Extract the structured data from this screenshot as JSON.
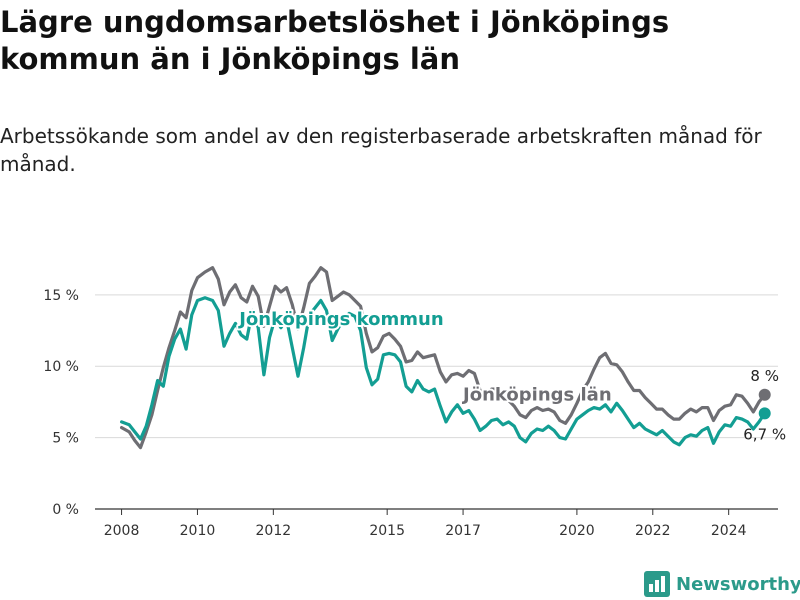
{
  "title": "Lägre ungdomsarbetslöshet i Jönköpings kommun än i Jönköpings län",
  "subtitle": "Arbetssökande som andel av den registerbaserade arbetskraften månad för månad.",
  "brand": {
    "name": "Newsworthy"
  },
  "colors": {
    "kommun": "#139e93",
    "lan": "#6e6e73",
    "grid": "#d9d9d9",
    "axis": "#333333"
  },
  "chart_data": {
    "type": "line",
    "xlim": [
      2007.3,
      2025.3
    ],
    "ylim": [
      0,
      18
    ],
    "x_ticks": [
      2008,
      2010,
      2012,
      2015,
      2017,
      2020,
      2022,
      2024
    ],
    "y_ticks": [
      {
        "value": 0,
        "label": "0 %"
      },
      {
        "value": 5,
        "label": "5 %"
      },
      {
        "value": 10,
        "label": "10 %"
      },
      {
        "value": 15,
        "label": "15 %"
      }
    ],
    "grid": true,
    "series": [
      {
        "name": "Jönköpings kommun",
        "color": "#139e93",
        "end_label": "6,7 %",
        "points": [
          [
            2008.0,
            6.1
          ],
          [
            2008.2,
            5.9
          ],
          [
            2008.35,
            5.4
          ],
          [
            2008.5,
            4.9
          ],
          [
            2008.65,
            5.8
          ],
          [
            2008.8,
            7.3
          ],
          [
            2008.95,
            9.0
          ],
          [
            2009.1,
            8.6
          ],
          [
            2009.25,
            10.7
          ],
          [
            2009.4,
            11.9
          ],
          [
            2009.55,
            12.6
          ],
          [
            2009.7,
            11.2
          ],
          [
            2009.85,
            13.6
          ],
          [
            2010.0,
            14.6
          ],
          [
            2010.2,
            14.8
          ],
          [
            2010.4,
            14.6
          ],
          [
            2010.55,
            13.9
          ],
          [
            2010.7,
            11.4
          ],
          [
            2010.85,
            12.3
          ],
          [
            2011.0,
            13.0
          ],
          [
            2011.15,
            12.2
          ],
          [
            2011.3,
            11.9
          ],
          [
            2011.45,
            13.9
          ],
          [
            2011.6,
            12.7
          ],
          [
            2011.75,
            9.4
          ],
          [
            2011.9,
            12.0
          ],
          [
            2012.05,
            13.4
          ],
          [
            2012.2,
            12.7
          ],
          [
            2012.35,
            13.3
          ],
          [
            2012.5,
            11.3
          ],
          [
            2012.65,
            9.3
          ],
          [
            2012.8,
            11.3
          ],
          [
            2012.95,
            13.6
          ],
          [
            2013.1,
            14.1
          ],
          [
            2013.25,
            14.6
          ],
          [
            2013.4,
            13.9
          ],
          [
            2013.55,
            11.8
          ],
          [
            2013.7,
            12.6
          ],
          [
            2013.85,
            13.3
          ],
          [
            2014.0,
            13.7
          ],
          [
            2014.15,
            13.5
          ],
          [
            2014.3,
            12.5
          ],
          [
            2014.45,
            9.9
          ],
          [
            2014.6,
            8.7
          ],
          [
            2014.75,
            9.1
          ],
          [
            2014.9,
            10.8
          ],
          [
            2015.05,
            10.9
          ],
          [
            2015.2,
            10.8
          ],
          [
            2015.35,
            10.3
          ],
          [
            2015.5,
            8.6
          ],
          [
            2015.65,
            8.2
          ],
          [
            2015.8,
            9.0
          ],
          [
            2015.95,
            8.4
          ],
          [
            2016.1,
            8.2
          ],
          [
            2016.25,
            8.4
          ],
          [
            2016.4,
            7.2
          ],
          [
            2016.55,
            6.1
          ],
          [
            2016.7,
            6.8
          ],
          [
            2016.85,
            7.3
          ],
          [
            2017.0,
            6.7
          ],
          [
            2017.15,
            6.9
          ],
          [
            2017.3,
            6.3
          ],
          [
            2017.45,
            5.5
          ],
          [
            2017.6,
            5.8
          ],
          [
            2017.75,
            6.2
          ],
          [
            2017.9,
            6.3
          ],
          [
            2018.05,
            5.9
          ],
          [
            2018.2,
            6.1
          ],
          [
            2018.35,
            5.8
          ],
          [
            2018.5,
            5.0
          ],
          [
            2018.65,
            4.7
          ],
          [
            2018.8,
            5.3
          ],
          [
            2018.95,
            5.6
          ],
          [
            2019.1,
            5.5
          ],
          [
            2019.25,
            5.8
          ],
          [
            2019.4,
            5.5
          ],
          [
            2019.55,
            5.0
          ],
          [
            2019.7,
            4.9
          ],
          [
            2019.85,
            5.6
          ],
          [
            2020.0,
            6.3
          ],
          [
            2020.15,
            6.6
          ],
          [
            2020.3,
            6.9
          ],
          [
            2020.45,
            7.1
          ],
          [
            2020.6,
            7.0
          ],
          [
            2020.75,
            7.3
          ],
          [
            2020.9,
            6.8
          ],
          [
            2021.05,
            7.4
          ],
          [
            2021.2,
            6.9
          ],
          [
            2021.35,
            6.3
          ],
          [
            2021.5,
            5.7
          ],
          [
            2021.65,
            6.0
          ],
          [
            2021.8,
            5.6
          ],
          [
            2021.95,
            5.4
          ],
          [
            2022.1,
            5.2
          ],
          [
            2022.25,
            5.5
          ],
          [
            2022.4,
            5.1
          ],
          [
            2022.55,
            4.7
          ],
          [
            2022.7,
            4.5
          ],
          [
            2022.85,
            5.0
          ],
          [
            2023.0,
            5.2
          ],
          [
            2023.15,
            5.1
          ],
          [
            2023.3,
            5.5
          ],
          [
            2023.45,
            5.7
          ],
          [
            2023.6,
            4.6
          ],
          [
            2023.75,
            5.4
          ],
          [
            2023.9,
            5.9
          ],
          [
            2024.05,
            5.8
          ],
          [
            2024.2,
            6.4
          ],
          [
            2024.35,
            6.3
          ],
          [
            2024.5,
            6.1
          ],
          [
            2024.65,
            5.6
          ],
          [
            2024.8,
            6.1
          ],
          [
            2024.95,
            6.7
          ]
        ]
      },
      {
        "name": "Jönköpings län",
        "color": "#6e6e73",
        "end_label": "8 %",
        "points": [
          [
            2008.0,
            5.7
          ],
          [
            2008.2,
            5.4
          ],
          [
            2008.35,
            4.8
          ],
          [
            2008.5,
            4.3
          ],
          [
            2008.65,
            5.4
          ],
          [
            2008.8,
            6.6
          ],
          [
            2008.95,
            8.3
          ],
          [
            2009.1,
            9.9
          ],
          [
            2009.25,
            11.3
          ],
          [
            2009.4,
            12.5
          ],
          [
            2009.55,
            13.8
          ],
          [
            2009.7,
            13.4
          ],
          [
            2009.85,
            15.3
          ],
          [
            2010.0,
            16.2
          ],
          [
            2010.2,
            16.6
          ],
          [
            2010.4,
            16.9
          ],
          [
            2010.55,
            16.1
          ],
          [
            2010.7,
            14.3
          ],
          [
            2010.85,
            15.2
          ],
          [
            2011.0,
            15.7
          ],
          [
            2011.15,
            14.8
          ],
          [
            2011.3,
            14.5
          ],
          [
            2011.45,
            15.6
          ],
          [
            2011.6,
            14.9
          ],
          [
            2011.75,
            12.8
          ],
          [
            2011.9,
            14.2
          ],
          [
            2012.05,
            15.6
          ],
          [
            2012.2,
            15.2
          ],
          [
            2012.35,
            15.5
          ],
          [
            2012.5,
            14.3
          ],
          [
            2012.65,
            12.6
          ],
          [
            2012.8,
            14.1
          ],
          [
            2012.95,
            15.8
          ],
          [
            2013.1,
            16.3
          ],
          [
            2013.25,
            16.9
          ],
          [
            2013.4,
            16.6
          ],
          [
            2013.55,
            14.6
          ],
          [
            2013.7,
            14.9
          ],
          [
            2013.85,
            15.2
          ],
          [
            2014.0,
            15.0
          ],
          [
            2014.15,
            14.6
          ],
          [
            2014.3,
            14.2
          ],
          [
            2014.45,
            12.3
          ],
          [
            2014.6,
            11.0
          ],
          [
            2014.75,
            11.3
          ],
          [
            2014.9,
            12.1
          ],
          [
            2015.05,
            12.3
          ],
          [
            2015.2,
            11.9
          ],
          [
            2015.35,
            11.4
          ],
          [
            2015.5,
            10.3
          ],
          [
            2015.65,
            10.4
          ],
          [
            2015.8,
            11.0
          ],
          [
            2015.95,
            10.6
          ],
          [
            2016.1,
            10.7
          ],
          [
            2016.25,
            10.8
          ],
          [
            2016.4,
            9.6
          ],
          [
            2016.55,
            8.9
          ],
          [
            2016.7,
            9.4
          ],
          [
            2016.85,
            9.5
          ],
          [
            2017.0,
            9.3
          ],
          [
            2017.15,
            9.7
          ],
          [
            2017.3,
            9.5
          ],
          [
            2017.45,
            8.3
          ],
          [
            2017.6,
            8.0
          ],
          [
            2017.75,
            8.4
          ],
          [
            2017.9,
            8.4
          ],
          [
            2018.05,
            7.8
          ],
          [
            2018.2,
            7.6
          ],
          [
            2018.35,
            7.2
          ],
          [
            2018.5,
            6.6
          ],
          [
            2018.65,
            6.4
          ],
          [
            2018.8,
            6.9
          ],
          [
            2018.95,
            7.1
          ],
          [
            2019.1,
            6.9
          ],
          [
            2019.25,
            7.0
          ],
          [
            2019.4,
            6.8
          ],
          [
            2019.55,
            6.2
          ],
          [
            2019.7,
            6.0
          ],
          [
            2019.85,
            6.6
          ],
          [
            2020.0,
            7.4
          ],
          [
            2020.15,
            8.3
          ],
          [
            2020.3,
            8.9
          ],
          [
            2020.45,
            9.8
          ],
          [
            2020.6,
            10.6
          ],
          [
            2020.75,
            10.9
          ],
          [
            2020.9,
            10.2
          ],
          [
            2021.05,
            10.1
          ],
          [
            2021.2,
            9.6
          ],
          [
            2021.35,
            8.9
          ],
          [
            2021.5,
            8.3
          ],
          [
            2021.65,
            8.3
          ],
          [
            2021.8,
            7.8
          ],
          [
            2021.95,
            7.4
          ],
          [
            2022.1,
            7.0
          ],
          [
            2022.25,
            7.0
          ],
          [
            2022.4,
            6.6
          ],
          [
            2022.55,
            6.3
          ],
          [
            2022.7,
            6.3
          ],
          [
            2022.85,
            6.7
          ],
          [
            2023.0,
            7.0
          ],
          [
            2023.15,
            6.8
          ],
          [
            2023.3,
            7.1
          ],
          [
            2023.45,
            7.1
          ],
          [
            2023.6,
            6.2
          ],
          [
            2023.75,
            6.9
          ],
          [
            2023.9,
            7.2
          ],
          [
            2024.05,
            7.3
          ],
          [
            2024.2,
            8.0
          ],
          [
            2024.35,
            7.9
          ],
          [
            2024.5,
            7.4
          ],
          [
            2024.65,
            6.8
          ],
          [
            2024.8,
            7.5
          ],
          [
            2024.95,
            8.0
          ]
        ]
      }
    ],
    "annotations": [
      {
        "text": "Jönköpings kommun",
        "series": 0,
        "x": 2011.1,
        "y": 12.9
      },
      {
        "text": "Jönköpings län",
        "series": 1,
        "x": 2017.0,
        "y": 7.6
      }
    ]
  }
}
